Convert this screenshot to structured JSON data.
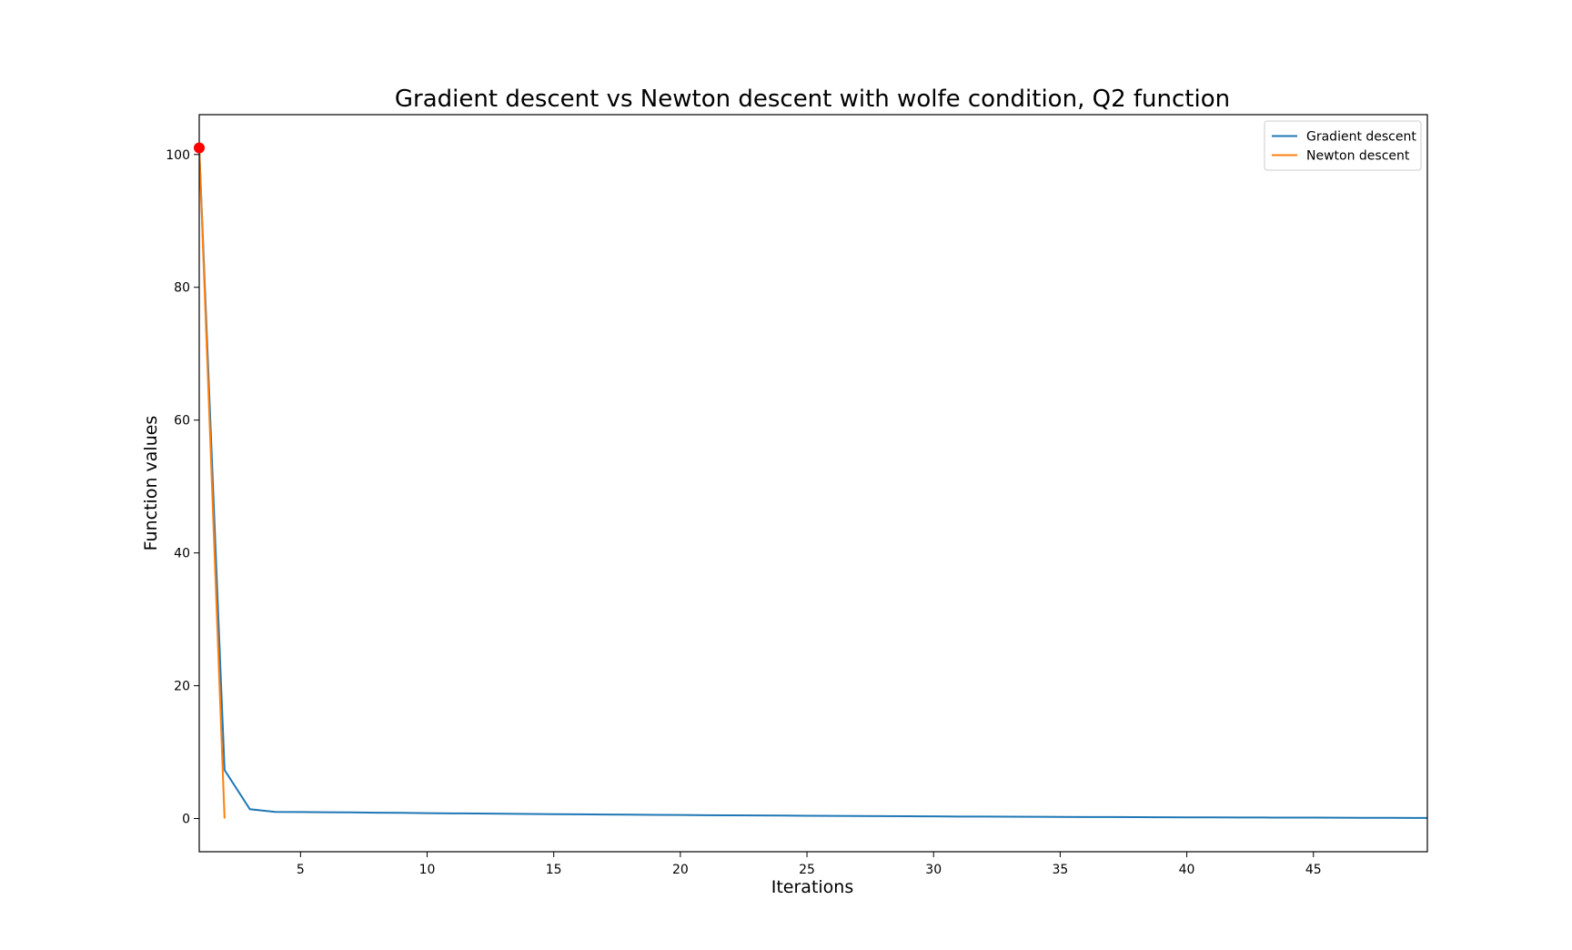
{
  "chart_data": {
    "type": "line",
    "title": "Gradient descent vs Newton descent with wolfe condition, Q2 function",
    "xlabel": "Iterations",
    "ylabel": "Function values",
    "xlim": [
      1,
      49.5
    ],
    "ylim": [
      -5,
      106
    ],
    "xticks": [
      5,
      10,
      15,
      20,
      25,
      30,
      35,
      40,
      45
    ],
    "yticks": [
      0,
      20,
      40,
      60,
      80,
      100
    ],
    "grid": false,
    "legend_position": "top-right",
    "series": [
      {
        "name": "Gradient descent",
        "color": "#1f77b4",
        "x": [
          1,
          2,
          3,
          4,
          5,
          6,
          7,
          8,
          9,
          10,
          11,
          12,
          13,
          14,
          15,
          16,
          17,
          18,
          19,
          20,
          21,
          22,
          23,
          24,
          25,
          26,
          27,
          28,
          29,
          30,
          31,
          32,
          33,
          34,
          35,
          36,
          37,
          38,
          39,
          40,
          41,
          42,
          43,
          44,
          45,
          46,
          47,
          48,
          49,
          50
        ],
        "values": [
          101,
          7.3,
          1.4,
          1.0,
          0.98,
          0.95,
          0.92,
          0.88,
          0.85,
          0.8,
          0.78,
          0.75,
          0.72,
          0.69,
          0.66,
          0.63,
          0.6,
          0.58,
          0.55,
          0.53,
          0.5,
          0.48,
          0.46,
          0.44,
          0.42,
          0.4,
          0.38,
          0.36,
          0.34,
          0.32,
          0.3,
          0.29,
          0.27,
          0.26,
          0.24,
          0.23,
          0.22,
          0.2,
          0.19,
          0.18,
          0.17,
          0.16,
          0.15,
          0.14,
          0.13,
          0.12,
          0.11,
          0.1,
          0.09,
          0.08
        ]
      },
      {
        "name": "Newton descent",
        "color": "#ff7f0e",
        "x": [
          1,
          2
        ],
        "values": [
          101,
          0
        ]
      }
    ],
    "markers": [
      {
        "x": 1,
        "y": 101,
        "color": "#ff0000"
      }
    ]
  }
}
